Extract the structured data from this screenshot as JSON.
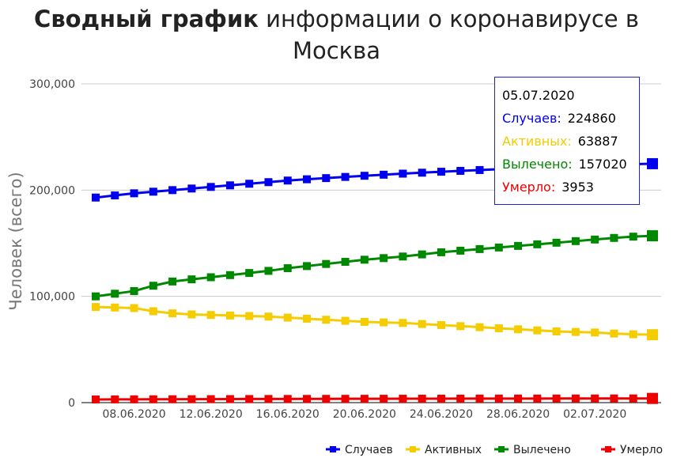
{
  "title": {
    "bold": "Сводный график",
    "rest": " информации о коронавирусе в Москва"
  },
  "chart_data": {
    "type": "line",
    "title": "Сводный график информации о коронавирусе в Москва",
    "ylabel": "Человек (всего)",
    "xlabel": "",
    "ylim": [
      0,
      300000
    ],
    "y_ticks": [
      "0",
      "100,000",
      "200,000",
      "300,000"
    ],
    "y_tick_values": [
      0,
      100000,
      200000,
      300000
    ],
    "x_ticks": [
      "08.06.2020",
      "12.06.2020",
      "16.06.2020",
      "20.06.2020",
      "24.06.2020",
      "28.06.2020",
      "02.07.2020"
    ],
    "x_tick_indices": [
      2,
      6,
      10,
      14,
      18,
      22,
      26
    ],
    "dates": [
      "06.06.2020",
      "07.06.2020",
      "08.06.2020",
      "09.06.2020",
      "10.06.2020",
      "11.06.2020",
      "12.06.2020",
      "13.06.2020",
      "14.06.2020",
      "15.06.2020",
      "16.06.2020",
      "17.06.2020",
      "18.06.2020",
      "19.06.2020",
      "20.06.2020",
      "21.06.2020",
      "22.06.2020",
      "23.06.2020",
      "24.06.2020",
      "25.06.2020",
      "26.06.2020",
      "27.06.2020",
      "28.06.2020",
      "29.06.2020",
      "30.06.2020",
      "01.07.2020",
      "02.07.2020",
      "03.07.2020",
      "04.07.2020",
      "05.07.2020"
    ],
    "legend_position": "bottom-right",
    "grid": true,
    "series": [
      {
        "name": "Случаев",
        "color": "#0000ee",
        "values": [
          193000,
          195000,
          197000,
          198500,
          200000,
          201500,
          203000,
          204500,
          206000,
          207500,
          209000,
          210200,
          211300,
          212400,
          213500,
          214500,
          215500,
          216400,
          217300,
          218100,
          218900,
          219700,
          220400,
          221100,
          221800,
          222500,
          223200,
          223800,
          224400,
          224860
        ]
      },
      {
        "name": "Активных",
        "color": "#f5cc00",
        "values": [
          90000,
          89500,
          89000,
          86000,
          84000,
          83000,
          82500,
          82000,
          81500,
          81000,
          80000,
          79000,
          78000,
          77000,
          76000,
          75500,
          75000,
          74000,
          73000,
          72000,
          71000,
          70000,
          69000,
          68000,
          67000,
          66500,
          66000,
          65000,
          64300,
          63887
        ]
      },
      {
        "name": "Вылечено",
        "color": "#008800",
        "values": [
          100000,
          102500,
          105000,
          110000,
          114000,
          116000,
          118000,
          120000,
          122000,
          124000,
          126500,
          128500,
          130500,
          132500,
          134500,
          136000,
          137500,
          139500,
          141500,
          143000,
          144500,
          146000,
          147500,
          149000,
          150500,
          152000,
          153500,
          155000,
          156200,
          157020
        ]
      },
      {
        "name": "Умерло",
        "color": "#ee0000",
        "values": [
          3000,
          3050,
          3100,
          3150,
          3200,
          3250,
          3300,
          3350,
          3400,
          3450,
          3480,
          3520,
          3560,
          3590,
          3620,
          3650,
          3680,
          3710,
          3740,
          3770,
          3800,
          3820,
          3840,
          3860,
          3880,
          3900,
          3915,
          3930,
          3942,
          3953
        ]
      }
    ]
  },
  "tooltip": {
    "date": "05.07.2020",
    "rows": [
      {
        "label": "Случаев:",
        "value": "224860",
        "color": "#0000ee"
      },
      {
        "label": "Активных:",
        "value": "63887",
        "color": "#f5cc00"
      },
      {
        "label": "Вылечено:",
        "value": "157020",
        "color": "#008800"
      },
      {
        "label": "Умерло:",
        "value": "3953",
        "color": "#ee0000"
      }
    ]
  }
}
